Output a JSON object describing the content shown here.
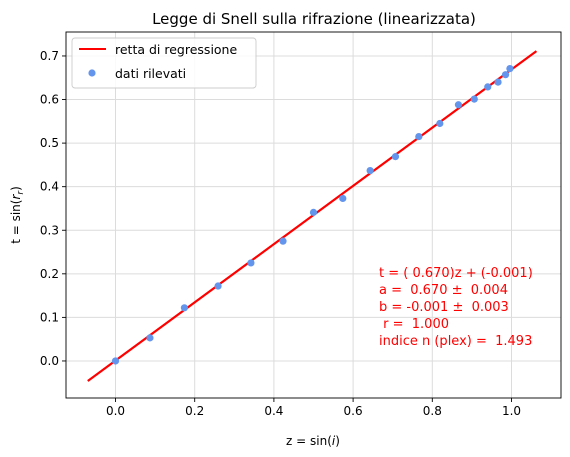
{
  "chart_data": {
    "type": "scatter",
    "title": "Legge di Snell sulla rifrazione (linearizzata)",
    "xlabel": {
      "pre": "z = sin(",
      "var": "i",
      "post": ")"
    },
    "ylabel": {
      "pre": "t = sin(",
      "var": "r",
      "sub": "r",
      "post": ")"
    },
    "xlim": [
      -0.125,
      1.125
    ],
    "ylim": [
      -0.085,
      0.755
    ],
    "x_ticks": [
      0.0,
      0.2,
      0.4,
      0.6,
      0.8,
      1.0
    ],
    "x_tick_labels": [
      "0.0",
      "0.2",
      "0.4",
      "0.6",
      "0.8",
      "1.0"
    ],
    "y_ticks": [
      0.0,
      0.1,
      0.2,
      0.3,
      0.4,
      0.5,
      0.6,
      0.7
    ],
    "y_tick_labels": [
      "0.0",
      "0.1",
      "0.2",
      "0.3",
      "0.4",
      "0.5",
      "0.6",
      "0.7"
    ],
    "grid": true,
    "legend_position": "top-left",
    "series": [
      {
        "name": "dati rilevati",
        "kind": "points",
        "color": "#6495ED",
        "x": [
          0.0,
          0.087,
          0.174,
          0.259,
          0.342,
          0.423,
          0.5,
          0.574,
          0.643,
          0.707,
          0.766,
          0.819,
          0.866,
          0.906,
          0.94,
          0.966,
          0.985,
          0.996
        ],
        "y": [
          0.0,
          0.053,
          0.122,
          0.172,
          0.225,
          0.275,
          0.341,
          0.373,
          0.437,
          0.469,
          0.515,
          0.545,
          0.588,
          0.601,
          0.629,
          0.64,
          0.657,
          0.671
        ]
      },
      {
        "name": "retta di regressione",
        "kind": "line",
        "color": "#FF0000",
        "x": [
          -0.07,
          1.063
        ],
        "y": [
          -0.0459,
          0.7112
        ]
      }
    ],
    "annotation": {
      "color": "#FF0000",
      "lines": [
        "t = ( 0.670)z + (-0.001)",
        "a =  0.670 ±  0.004",
        "b = -0.001 ±  0.003",
        " r =  1.000",
        "indice n (plex) =  1.493"
      ]
    }
  }
}
